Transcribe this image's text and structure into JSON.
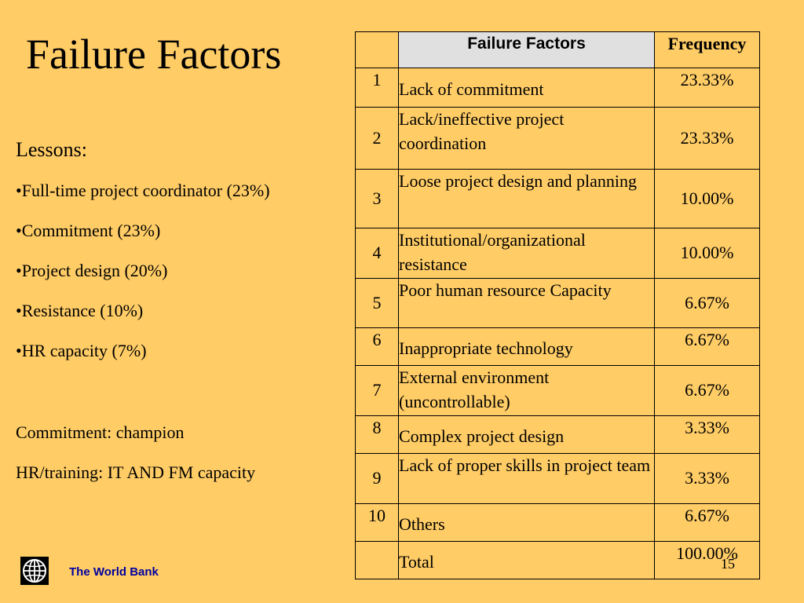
{
  "slide": {
    "title": "Failure Factors",
    "page_number": "15"
  },
  "lessons": {
    "heading": "Lessons:",
    "bullets": [
      "•Full-time project coordinator (23%)",
      "•Commitment (23%)",
      "•Project design (20%)",
      "•Resistance (10%)",
      "•HR capacity (7%)"
    ],
    "notes": [
      "Commitment: champion",
      "HR/training: IT AND FM capacity"
    ]
  },
  "table": {
    "headers": [
      "",
      "Failure Factors",
      "Frequency"
    ],
    "rows": [
      {
        "num": "1",
        "factor": "Lack of commitment",
        "freq": "23.33%"
      },
      {
        "num": "2",
        "factor": "Lack/ineffective project coordination",
        "freq": "23.33%"
      },
      {
        "num": "3",
        "factor": "Loose project design and planning",
        "freq": "10.00%"
      },
      {
        "num": "4",
        "factor": "Institutional/organizational resistance",
        "freq": "10.00%"
      },
      {
        "num": "5",
        "factor": "Poor human resource Capacity",
        "freq": "6.67%"
      },
      {
        "num": "6",
        "factor": "Inappropriate technology",
        "freq": "6.67%"
      },
      {
        "num": "7",
        "factor": "External environment (uncontrollable)",
        "freq": "6.67%"
      },
      {
        "num": "8",
        "factor": "Complex project design",
        "freq": "3.33%"
      },
      {
        "num": "9",
        "factor": "Lack of proper skills in project team",
        "freq": "3.33%"
      },
      {
        "num": "10",
        "factor": "Others",
        "freq": "6.67%"
      }
    ],
    "total": {
      "num": "",
      "factor": "Total",
      "freq": "100.00%"
    }
  },
  "footer": {
    "organization": "The World Bank",
    "logo_icon": "globe-icon"
  },
  "colors": {
    "background": "#FFCC66",
    "header_fill": "#E0E0E0",
    "footer_text": "#0000A0"
  }
}
